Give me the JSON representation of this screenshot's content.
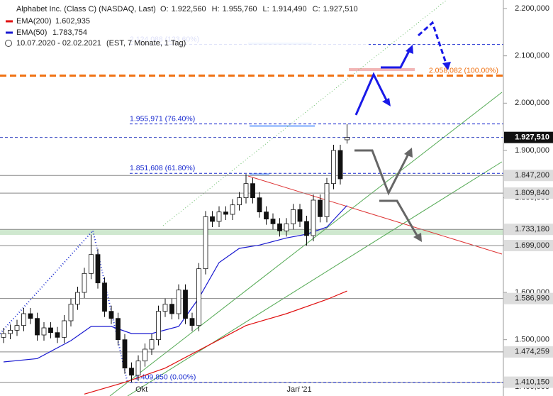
{
  "chart_data": {
    "type": "candlestick",
    "title": "Alphabet Inc. (Class C) (NASDAQ, Last)",
    "quote": [
      {
        "key": "O:",
        "text": "1.922,560"
      },
      {
        "key": "H:",
        "text": "1.955,760"
      },
      {
        "key": "L:",
        "text": "1.914,490"
      },
      {
        "key": "C:",
        "text": "1.927,510"
      }
    ],
    "range": "10.07.2020 - 02.02.2021",
    "range_note": "(EST, 7 Monate, 1 Tag)",
    "open": [
      1505,
      1513,
      1520,
      1530,
      1555,
      1545,
      1510,
      1525,
      1515,
      1505,
      1540,
      1575,
      1600,
      1640,
      1680,
      1620,
      1560,
      1545,
      1500,
      1440,
      1425,
      1455,
      1480,
      1500,
      1560,
      1575,
      1555,
      1605,
      1545,
      1530,
      1650,
      1760,
      1750,
      1770,
      1765,
      1785,
      1800,
      1830,
      1800,
      1770,
      1755,
      1745,
      1730,
      1745,
      1775,
      1750,
      1720,
      1795,
      1760,
      1830,
      1900,
      1922.56
    ],
    "high": [
      1525,
      1532,
      1542,
      1567,
      1567,
      1557,
      1537,
      1537,
      1527,
      1552,
      1587,
      1612,
      1652,
      1722,
      1692,
      1632,
      1572,
      1557,
      1512,
      1452,
      1467,
      1492,
      1512,
      1572,
      1587,
      1587,
      1617,
      1617,
      1557,
      1662,
      1772,
      1772,
      1782,
      1782,
      1797,
      1812,
      1850,
      1842,
      1812,
      1782,
      1767,
      1757,
      1757,
      1787,
      1787,
      1762,
      1807,
      1807,
      1842,
      1912,
      1912,
      1955.76
    ],
    "low": [
      1493,
      1501,
      1508,
      1518,
      1533,
      1498,
      1498,
      1503,
      1493,
      1493,
      1528,
      1563,
      1588,
      1628,
      1608,
      1548,
      1533,
      1488,
      1428,
      1409.85,
      1413,
      1443,
      1468,
      1488,
      1548,
      1543,
      1543,
      1533,
      1518,
      1518,
      1638,
      1738,
      1738,
      1753,
      1753,
      1773,
      1788,
      1788,
      1758,
      1743,
      1733,
      1718,
      1718,
      1733,
      1738,
      1699,
      1708,
      1748,
      1748,
      1818,
      1828,
      1914.49
    ],
    "close": [
      1513,
      1520,
      1530,
      1555,
      1545,
      1510,
      1525,
      1515,
      1505,
      1540,
      1575,
      1600,
      1640,
      1680,
      1620,
      1560,
      1545,
      1500,
      1440,
      1425,
      1455,
      1480,
      1500,
      1560,
      1575,
      1555,
      1605,
      1545,
      1530,
      1650,
      1760,
      1750,
      1770,
      1765,
      1785,
      1800,
      1830,
      1800,
      1770,
      1755,
      1745,
      1730,
      1745,
      1775,
      1750,
      1720,
      1795,
      1760,
      1830,
      1900,
      1840,
      1927.51
    ],
    "series": [
      {
        "name": "EMA(200)",
        "color": "#e01010",
        "legend_text": "1.602,935",
        "x": [
          12,
          18,
          24,
          30,
          36,
          42,
          48,
          51
        ],
        "values": [
          1385,
          1410,
          1440,
          1485,
          1530,
          1555,
          1585,
          1602.935
        ]
      },
      {
        "name": "EMA(50)",
        "color": "#1a1ad0",
        "legend_text": "1.783,754",
        "x": [
          0,
          5,
          10,
          13,
          16,
          19,
          22,
          26,
          29,
          32,
          35,
          38,
          42,
          45,
          48,
          51
        ],
        "values": [
          1453,
          1460,
          1498,
          1528,
          1528,
          1513,
          1513,
          1528,
          1588,
          1663,
          1693,
          1700,
          1715,
          1723,
          1738,
          1783.754
        ]
      }
    ],
    "xlim": [
      -0.526,
      74.21
    ],
    "xticks": [
      {
        "value": 20.5,
        "label": "Okt"
      },
      {
        "value": 43.9,
        "label": "Jan '21"
      }
    ],
    "ylim": [
      1381,
      2218
    ],
    "yticks": [
      {
        "value": 1400,
        "label": "1.400,000"
      },
      {
        "value": 1500,
        "label": "1.500,000"
      },
      {
        "value": 1600,
        "label": "1.600,000"
      },
      {
        "value": 1700,
        "label": "1.700,000"
      },
      {
        "value": 1800,
        "label": "1.800,000"
      },
      {
        "value": 1900,
        "label": "1.900,000"
      },
      {
        "value": 2000,
        "label": "2.000,000"
      },
      {
        "value": 2100,
        "label": "2.100,000"
      },
      {
        "value": 2200,
        "label": "2.200,000"
      }
    ],
    "fib_levels": [
      {
        "value": 2124.088,
        "label": "2.124,088 (123.60%)",
        "color": "#1a2bd0"
      },
      {
        "value": 2058.082,
        "label": "2.058,082 (100.00%)",
        "color": "#f07010"
      },
      {
        "value": 1955.971,
        "label": "1.955,971 (76.40%)",
        "color": "#1a2bd0"
      },
      {
        "value": 1851.608,
        "label": "1.851,608 (61.80%)",
        "color": "#1a2bd0"
      },
      {
        "value": 1409.85,
        "label": "1.409,850 (0.00%)",
        "color": "#1a2bd0"
      }
    ],
    "price_levels": [
      {
        "value": 1927.51,
        "label": "1.927,510",
        "current": true
      },
      {
        "value": 1847.2,
        "label": "1.847,200"
      },
      {
        "value": 1809.84,
        "label": "1.809,840"
      },
      {
        "value": 1733.18,
        "label": "1.733,180"
      },
      {
        "value": 1699,
        "label": "1.699,000"
      },
      {
        "value": 1586.99,
        "label": "1.586,990"
      },
      {
        "value": 1474.259,
        "label": "1.474,259"
      },
      {
        "value": 1410.15,
        "label": "1.410,150"
      }
    ]
  }
}
